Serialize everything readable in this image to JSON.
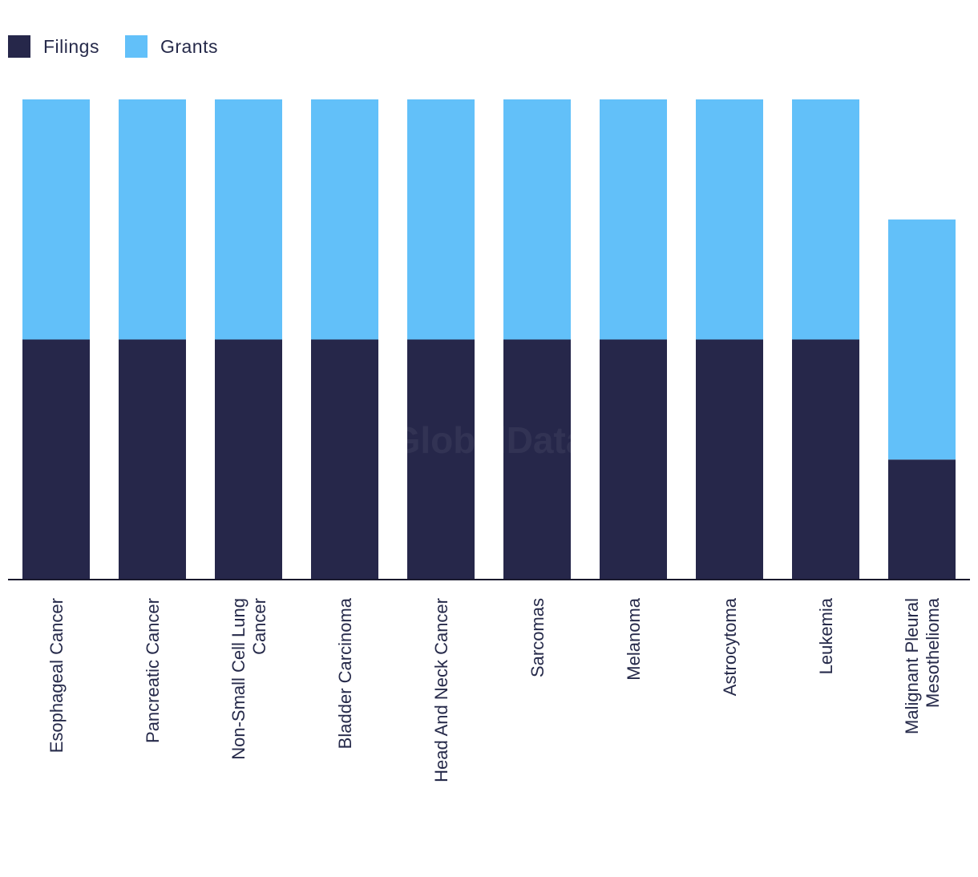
{
  "chart_data": {
    "type": "bar",
    "stacked": true,
    "categories": [
      [
        "Esophageal Cancer"
      ],
      [
        "Pancreatic Cancer"
      ],
      [
        "Non-Small Cell Lung",
        "Cancer"
      ],
      [
        "Bladder Carcinoma"
      ],
      [
        "Head And Neck Cancer"
      ],
      [
        "Sarcomas"
      ],
      [
        "Melanoma"
      ],
      [
        "Astrocytoma"
      ],
      [
        "Leukemia"
      ],
      [
        "Malignant Pleural",
        "Mesothelioma"
      ]
    ],
    "series": [
      {
        "name": "Filings",
        "color": "#26274a",
        "values": [
          2,
          2,
          2,
          2,
          2,
          2,
          2,
          2,
          2,
          1
        ]
      },
      {
        "name": "Grants",
        "color": "#62c0f9",
        "values": [
          2,
          2,
          2,
          2,
          2,
          2,
          2,
          2,
          2,
          2
        ]
      }
    ],
    "ylim": [
      0,
      4
    ],
    "title": "",
    "xlabel": "",
    "ylabel": "",
    "grid": false,
    "legend_position": "top-left",
    "watermark": "GlobalData"
  }
}
